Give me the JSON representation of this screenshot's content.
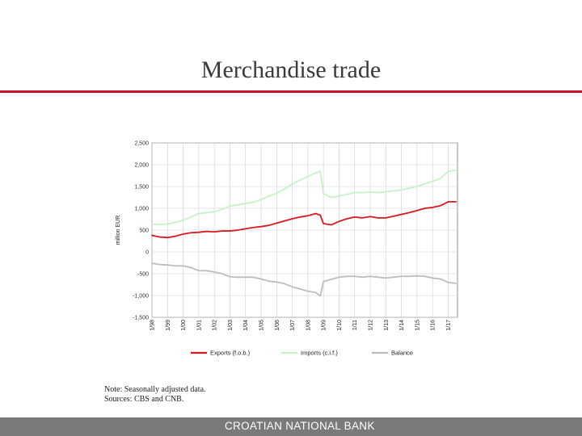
{
  "slide": {
    "title": "Merchandise trade",
    "note": "Note: Seasonally adjusted data.",
    "sources": "Sources: CBS and CNB.",
    "footer": "CROATIAN NATIONAL BANK"
  },
  "colors": {
    "accent": "#c8102e",
    "footer_bg": "#7a7a7a"
  },
  "chart_data": {
    "type": "line",
    "ylabel": "million EUR",
    "ylim": [
      -1500,
      2500
    ],
    "yticks": [
      2500,
      2000,
      1500,
      1000,
      500,
      0,
      -500,
      -1000,
      -1500
    ],
    "ytick_labels": [
      "2,500",
      "2,000",
      "1,500",
      "1,000",
      "500",
      "0",
      "-500",
      "-1,000",
      "-1,500"
    ],
    "xlim": [
      1998,
      2017.6
    ],
    "x_tick_labels": [
      "1/98",
      "1/99",
      "1/00",
      "1/01",
      "1/02",
      "1/03",
      "1/04",
      "1/05",
      "1/06",
      "1/07",
      "1/08",
      "1/09",
      "1/10",
      "1/11",
      "1/12",
      "1/13",
      "1/14",
      "1/15",
      "1/16",
      "1/17"
    ],
    "x_tick_values": [
      1998,
      1999,
      2000,
      2001,
      2002,
      2003,
      2004,
      2005,
      2006,
      2007,
      2008,
      2009,
      2010,
      2011,
      2012,
      2013,
      2014,
      2015,
      2016,
      2017
    ],
    "grid": true,
    "legend_position": "bottom",
    "series": [
      {
        "name": "Exports (f.o.b.)",
        "color": "#d71920",
        "x": [
          1998,
          1998.5,
          1999,
          1999.5,
          2000,
          2000.5,
          2001,
          2001.5,
          2002,
          2002.5,
          2003,
          2003.5,
          2004,
          2004.5,
          2005,
          2005.5,
          2006,
          2006.5,
          2007,
          2007.5,
          2008,
          2008.5,
          2008.8,
          2009,
          2009.5,
          2010,
          2010.5,
          2011,
          2011.5,
          2012,
          2012.5,
          2013,
          2013.5,
          2014,
          2014.5,
          2015,
          2015.5,
          2016,
          2016.5,
          2017,
          2017.5
        ],
        "values": [
          380,
          340,
          330,
          360,
          410,
          440,
          450,
          470,
          460,
          480,
          480,
          500,
          530,
          560,
          580,
          610,
          660,
          710,
          760,
          800,
          830,
          880,
          840,
          650,
          620,
          700,
          760,
          800,
          780,
          810,
          780,
          780,
          820,
          860,
          900,
          950,
          1000,
          1020,
          1060,
          1150,
          1150
        ]
      },
      {
        "name": "Imports (c.i.f.)",
        "color": "#c6f2c6",
        "x": [
          1998,
          1998.5,
          1999,
          1999.5,
          2000,
          2000.5,
          2001,
          2001.5,
          2002,
          2002.5,
          2003,
          2003.5,
          2004,
          2004.5,
          2005,
          2005.5,
          2006,
          2006.5,
          2007,
          2007.5,
          2008,
          2008.5,
          2008.8,
          2009,
          2009.5,
          2010,
          2010.5,
          2011,
          2011.5,
          2012,
          2012.5,
          2013,
          2013.5,
          2014,
          2014.5,
          2015,
          2015.5,
          2016,
          2016.5,
          2017,
          2017.5
        ],
        "values": [
          640,
          630,
          640,
          680,
          730,
          800,
          880,
          900,
          920,
          980,
          1050,
          1080,
          1110,
          1140,
          1200,
          1280,
          1350,
          1440,
          1560,
          1650,
          1730,
          1810,
          1850,
          1330,
          1250,
          1280,
          1320,
          1360,
          1360,
          1370,
          1360,
          1380,
          1400,
          1420,
          1460,
          1500,
          1560,
          1620,
          1680,
          1850,
          1870
        ]
      },
      {
        "name": "Balance",
        "color": "#bdbdbd",
        "x": [
          1998,
          1998.5,
          1999,
          1999.5,
          2000,
          2000.5,
          2001,
          2001.5,
          2002,
          2002.5,
          2003,
          2003.5,
          2004,
          2004.5,
          2005,
          2005.5,
          2006,
          2006.5,
          2007,
          2007.5,
          2008,
          2008.5,
          2008.8,
          2009,
          2009.5,
          2010,
          2010.5,
          2011,
          2011.5,
          2012,
          2012.5,
          2013,
          2013.5,
          2014,
          2014.5,
          2015,
          2015.5,
          2016,
          2016.5,
          2017,
          2017.5
        ],
        "values": [
          -260,
          -290,
          -300,
          -320,
          -320,
          -360,
          -430,
          -430,
          -460,
          -500,
          -570,
          -580,
          -580,
          -580,
          -620,
          -670,
          -690,
          -730,
          -800,
          -850,
          -900,
          -930,
          -1010,
          -680,
          -630,
          -580,
          -560,
          -560,
          -580,
          -560,
          -580,
          -600,
          -580,
          -560,
          -560,
          -550,
          -560,
          -600,
          -620,
          -700,
          -720
        ]
      }
    ]
  }
}
